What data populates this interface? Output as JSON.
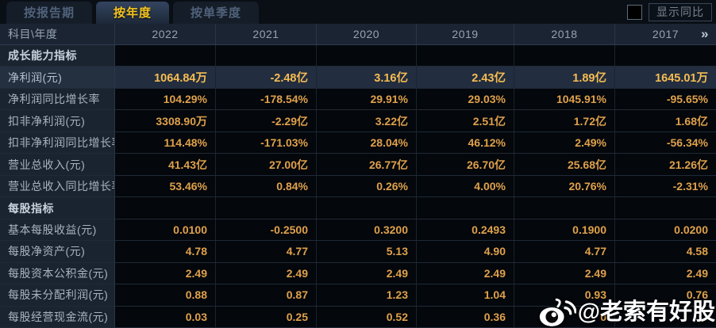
{
  "tabs": [
    {
      "name": "report-period",
      "label": "按报告期",
      "active": false
    },
    {
      "name": "annual",
      "label": "按年度",
      "active": true
    },
    {
      "name": "single-quarter",
      "label": "按单季度",
      "active": false
    }
  ],
  "controls": {
    "compare_label": "显示同比",
    "checkbox_checked": false
  },
  "table": {
    "corner_header": "科目\\年度",
    "year_headers": [
      "2022",
      "2021",
      "2020",
      "2019",
      "2018",
      "2017"
    ],
    "more_icon": "»",
    "rows": [
      {
        "type": "section",
        "label": "成长能力指标",
        "values": [
          "",
          "",
          "",
          "",
          "",
          ""
        ]
      },
      {
        "type": "data",
        "highlight": true,
        "label": "净利润(元)",
        "values": [
          "1064.84万",
          "-2.48亿",
          "3.16亿",
          "2.43亿",
          "1.89亿",
          "1645.01万"
        ]
      },
      {
        "type": "data",
        "label": "净利润同比增长率",
        "values": [
          "104.29%",
          "-178.54%",
          "29.91%",
          "29.03%",
          "1045.91%",
          "-95.65%"
        ]
      },
      {
        "type": "data",
        "label": "扣非净利润(元)",
        "values": [
          "3308.90万",
          "-2.29亿",
          "3.22亿",
          "2.51亿",
          "1.72亿",
          "1.68亿"
        ]
      },
      {
        "type": "data",
        "label": "扣非净利润同比增长率",
        "values": [
          "114.48%",
          "-171.03%",
          "28.04%",
          "46.12%",
          "2.49%",
          "-56.34%"
        ]
      },
      {
        "type": "data",
        "label": "营业总收入(元)",
        "values": [
          "41.43亿",
          "27.00亿",
          "26.77亿",
          "26.70亿",
          "25.68亿",
          "21.26亿"
        ]
      },
      {
        "type": "data",
        "label": "营业总收入同比增长率",
        "values": [
          "53.46%",
          "0.84%",
          "0.26%",
          "4.00%",
          "20.76%",
          "-2.31%"
        ]
      },
      {
        "type": "section",
        "label": "每股指标",
        "values": [
          "",
          "",
          "",
          "",
          "",
          ""
        ]
      },
      {
        "type": "data",
        "label": "基本每股收益(元)",
        "values": [
          "0.0100",
          "-0.2500",
          "0.3200",
          "0.2493",
          "0.1900",
          "0.0200"
        ]
      },
      {
        "type": "data",
        "label": "每股净资产(元)",
        "values": [
          "4.78",
          "4.77",
          "5.13",
          "4.90",
          "4.77",
          "4.58"
        ]
      },
      {
        "type": "data",
        "label": "每股资本公积金(元)",
        "values": [
          "2.49",
          "2.49",
          "2.49",
          "2.49",
          "2.49",
          "2.49"
        ]
      },
      {
        "type": "data",
        "label": "每股未分配利润(元)",
        "values": [
          "0.88",
          "0.87",
          "1.23",
          "1.04",
          "0.93",
          "0.76"
        ]
      },
      {
        "type": "data",
        "label": "每股经营现金流(元)",
        "values": [
          "0.03",
          "0.25",
          "0.52",
          "0.36",
          "0",
          ""
        ]
      }
    ]
  },
  "watermark": {
    "icon": "weibo-logo",
    "text": "@老索有好股"
  },
  "colors": {
    "background": "#070b10",
    "accent_gold": "#f5c51f",
    "value_gold": "#dfa14b",
    "highlight_gold": "#f6bd52",
    "header_bg": "#1a2433",
    "label_col_bg": "#1a2430",
    "highlight_row_bg": "#222d3f"
  }
}
